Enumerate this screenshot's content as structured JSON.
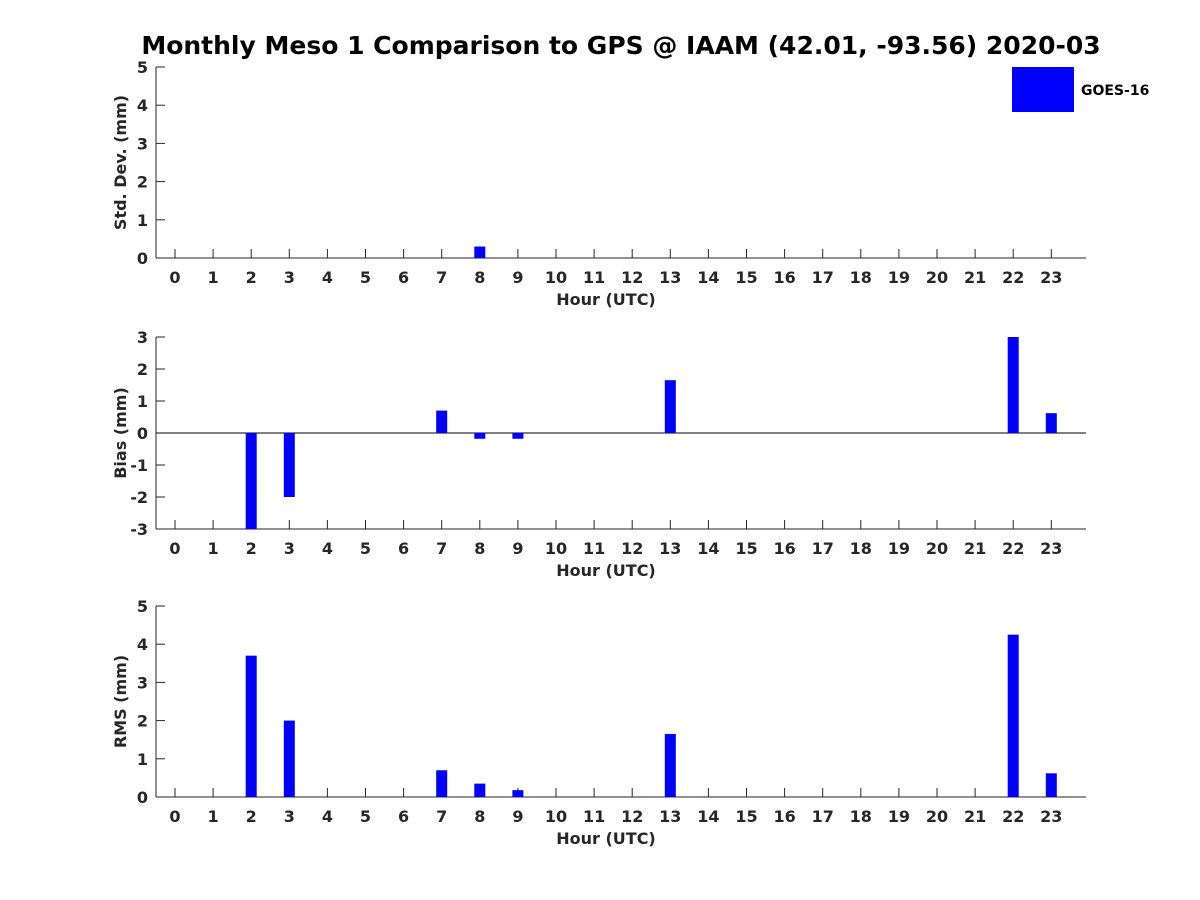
{
  "chart_data": {
    "type": "bar",
    "title": "Monthly Meso 1 Comparison to GPS @ IAAM (42.01, -93.56) 2020-03",
    "legend": {
      "label": "GOES-16",
      "color": "#0000ff",
      "placement": "top-right"
    },
    "bar_color": "#0000ff",
    "subplots": [
      {
        "id": "std",
        "ylabel": "Std. Dev. (mm)",
        "xlabel": "Hour (UTC)",
        "ylim": [
          0,
          5
        ],
        "yticks": [
          0,
          1,
          2,
          3,
          4,
          5
        ],
        "baseline": false,
        "categories": [
          "0",
          "1",
          "2",
          "3",
          "4",
          "5",
          "6",
          "7",
          "8",
          "9",
          "10",
          "11",
          "12",
          "13",
          "14",
          "15",
          "16",
          "17",
          "18",
          "19",
          "20",
          "21",
          "22",
          "23"
        ],
        "values": [
          0,
          0,
          0,
          0,
          0,
          0,
          0,
          0,
          0.3,
          0,
          0,
          0,
          0,
          0,
          0,
          0,
          0,
          0,
          0,
          0,
          0,
          0,
          0,
          0
        ]
      },
      {
        "id": "bias",
        "ylabel": "Bias (mm)",
        "xlabel": "Hour (UTC)",
        "ylim": [
          -3,
          3
        ],
        "yticks": [
          -3,
          -2,
          -1,
          0,
          1,
          2,
          3
        ],
        "baseline": true,
        "categories": [
          "0",
          "1",
          "2",
          "3",
          "4",
          "5",
          "6",
          "7",
          "8",
          "9",
          "10",
          "11",
          "12",
          "13",
          "14",
          "15",
          "16",
          "17",
          "18",
          "19",
          "20",
          "21",
          "22",
          "23"
        ],
        "values": [
          0,
          0,
          -3.0,
          -2.0,
          0,
          0,
          0,
          0.7,
          -0.18,
          -0.18,
          0,
          0,
          0,
          1.65,
          0,
          0,
          0,
          0,
          0,
          0,
          0,
          0,
          3.0,
          0.62
        ]
      },
      {
        "id": "rms",
        "ylabel": "RMS (mm)",
        "xlabel": "Hour (UTC)",
        "ylim": [
          0,
          5
        ],
        "yticks": [
          0,
          1,
          2,
          3,
          4,
          5
        ],
        "baseline": false,
        "categories": [
          "0",
          "1",
          "2",
          "3",
          "4",
          "5",
          "6",
          "7",
          "8",
          "9",
          "10",
          "11",
          "12",
          "13",
          "14",
          "15",
          "16",
          "17",
          "18",
          "19",
          "20",
          "21",
          "22",
          "23"
        ],
        "values": [
          0,
          0,
          3.7,
          2.0,
          0,
          0,
          0,
          0.7,
          0.35,
          0.18,
          0,
          0,
          0,
          1.65,
          0,
          0,
          0,
          0,
          0,
          0,
          0,
          0,
          4.25,
          0.62
        ]
      }
    ]
  }
}
